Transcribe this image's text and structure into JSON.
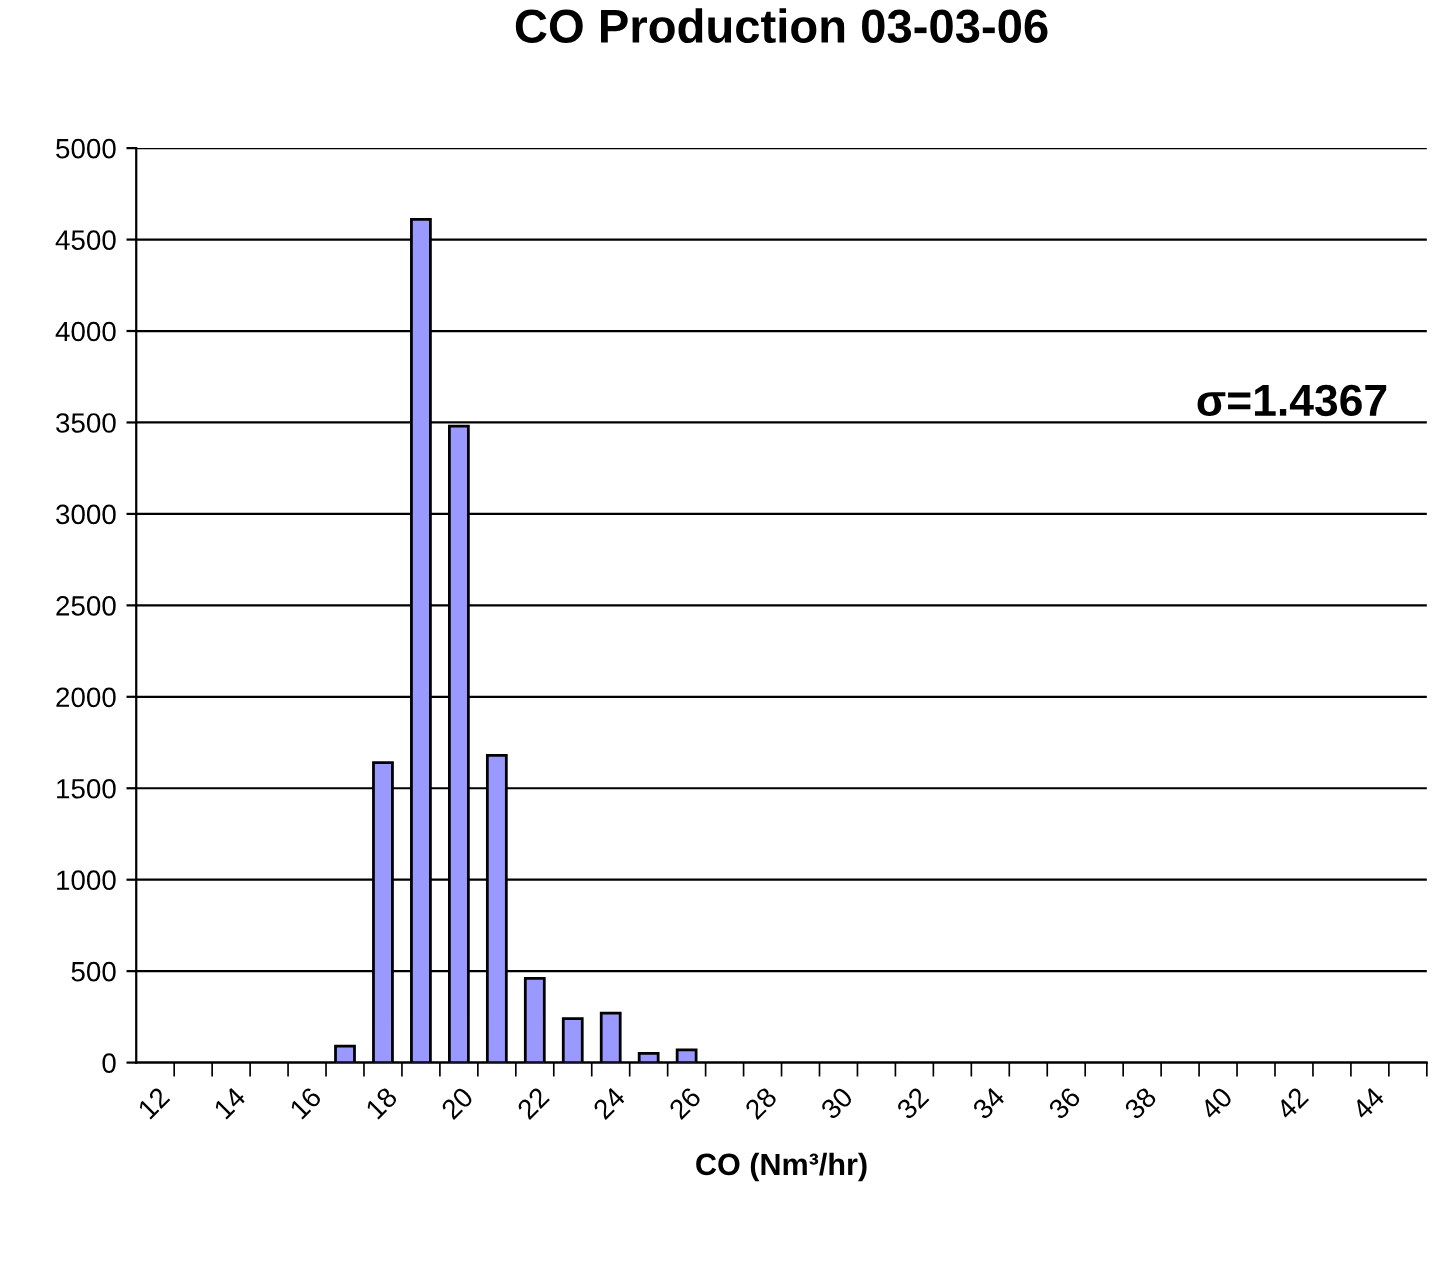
{
  "chart_data": {
    "type": "bar",
    "title": "CO Production 03-03-06",
    "xlabel": "CO (Nm³/hr)",
    "categories": [
      "12",
      null,
      "14",
      null,
      "16",
      null,
      "18",
      null,
      "20",
      null,
      "22",
      null,
      "24",
      null,
      "26",
      null,
      "28",
      null,
      "30",
      null,
      "32",
      null,
      "34",
      null,
      "36",
      null,
      "38",
      null,
      "40",
      null,
      "42",
      null,
      "44",
      null
    ],
    "values": [
      null,
      null,
      null,
      null,
      null,
      90,
      1640,
      4610,
      3480,
      1680,
      460,
      240,
      270,
      50,
      70,
      null,
      null,
      null,
      null,
      null,
      null,
      null,
      null,
      null,
      null,
      null,
      null,
      null,
      null,
      null,
      null,
      null,
      null,
      null
    ],
    "color": "#9999ff",
    "ylim": [
      0,
      5000
    ],
    "yticks": [
      0,
      500,
      1000,
      1500,
      2000,
      2500,
      3000,
      3500,
      4000,
      4500,
      5000
    ],
    "grid": "y",
    "annotations": [
      "σ=1.4367"
    ]
  }
}
